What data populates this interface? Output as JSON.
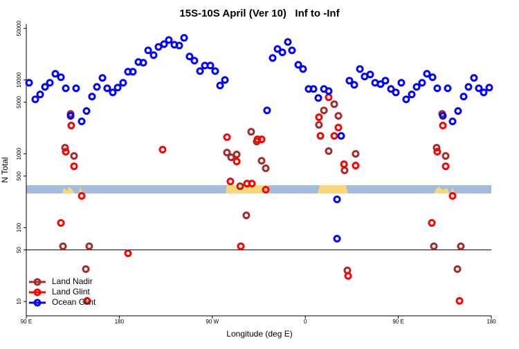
{
  "chart_data": {
    "type": "scatter",
    "title": "15S-10S April (Ver 10)   Inf to -Inf",
    "x_label": "Longitude (deg E)",
    "y_label": "N Total",
    "ylog": true,
    "legend": "bottom-left",
    "reference_line": 50,
    "xlim": [
      90,
      540
    ],
    "xticks": [
      {
        "value": 90,
        "label": "90 E"
      },
      180,
      {
        "value": 270,
        "label": "90 W"
      },
      {
        "value": 360,
        "label": "0"
      },
      {
        "value": 450,
        "label": "90 E"
      },
      {
        "value": 540,
        "label": "180"
      }
    ],
    "ylim": [
      6.4,
      57000
    ],
    "yticks": [
      10,
      50,
      100,
      500,
      1000,
      5000,
      10000,
      50000
    ],
    "series": [
      {
        "name": "Land Nadir",
        "color": "#a52a2a",
        "x": [
          127.5,
          136.2,
          132.9,
          125.5,
          150.9,
          147.6,
          284.2,
          288.2,
          293.6,
          296.9,
          302.9,
          307.6,
          313,
          317.7,
          321.7,
          373.2,
          378,
          382.6,
          388,
          392,
          398,
          400.7,
          408.7,
          487.1,
          495.8,
          492.4,
          484.4,
          510.5,
          507.2
        ],
        "values": [
          1210,
          937,
          3480,
          56,
          56,
          27.5,
          1040,
          898,
          980,
          364,
          147,
          1990,
          1470,
          806,
          637,
          2470,
          3880,
          1090,
          4710,
          3270,
          597,
          26.4,
          1000,
          1210,
          937,
          3480,
          56,
          56,
          27.5
        ]
      },
      {
        "name": "Land Glint",
        "color": "#ff0000",
        "x": [
          128.2,
          136.2,
          133.5,
          143.6,
          123.5,
          148.9,
          188.4,
          221.9,
          284.2,
          287.5,
          293.6,
          297.6,
          303.6,
          308.3,
          313.7,
          317.7,
          321.7,
          373.2,
          374.6,
          382.6,
          388,
          392,
          397.4,
          401.4,
          408.7,
          482.4,
          487.7,
          495.8,
          493.1,
          502.5,
          509.2
        ],
        "values": [
          1070,
          679,
          2420,
          269,
          116,
          10.2,
          45,
          1140,
          1680,
          423,
          789,
          56,
          396,
          396,
          1570,
          1570,
          327,
          3130,
          1750,
          5840,
          1750,
          2270,
          724,
          22.2,
          694,
          116,
          1070,
          679,
          2420,
          269,
          10.2
        ]
      },
      {
        "name": "Ocean Glint",
        "color": "#0000ff",
        "x": [
          92.7,
          98.7,
          103.4,
          108.1,
          112.8,
          118.1,
          123.5,
          128.2,
          138.2,
          132.9,
          143.6,
          148.3,
          153.6,
          158.3,
          163.7,
          168.3,
          173.7,
          178.4,
          183.7,
          188.4,
          193.1,
          198.5,
          203.2,
          207.9,
          213.2,
          217.9,
          223.3,
          227.9,
          233.3,
          238,
          242.7,
          248,
          252.7,
          258.1,
          262.8,
          268.1,
          272.8,
          277.5,
          282.2,
          323,
          328.4,
          333.1,
          337.8,
          343.1,
          347.1,
          353.2,
          357.8,
          363.2,
          367.9,
          372.6,
          378,
          382.6,
          390.7,
          390.7,
          394.7,
          402.7,
          407.4,
          412.8,
          417.4,
          422.8,
          427.5,
          432.8,
          437.5,
          442.9,
          447.6,
          452.9,
          457.6,
          463,
          467.7,
          473,
          477.7,
          483.1,
          487.7,
          497.8,
          493.1,
          502.5,
          507.8,
          513.2,
          517.9,
          523.2,
          527.9,
          532.6,
          538
        ],
        "values": [
          9180,
          5470,
          6370,
          8070,
          9180,
          12140,
          10900,
          7720,
          7720,
          3270,
          2750,
          3800,
          5970,
          8070,
          10670,
          7720,
          6790,
          7890,
          9180,
          12940,
          12940,
          17500,
          17130,
          25200,
          21700,
          28100,
          30600,
          34800,
          30000,
          29300,
          37200,
          20800,
          18300,
          13200,
          15700,
          15700,
          13200,
          8420,
          10000,
          3880,
          19900,
          26300,
          23700,
          32700,
          25200,
          16070,
          14100,
          7560,
          7560,
          5710,
          7560,
          7080,
          242,
          70.9,
          1750,
          9800,
          8600,
          14100,
          11130,
          11880,
          9180,
          8790,
          9800,
          7560,
          6790,
          9180,
          5470,
          6370,
          8070,
          9180,
          12140,
          10900,
          7720,
          7720,
          3270,
          2750,
          3800,
          5970,
          8070,
          10670,
          7720,
          6790,
          7890
        ]
      }
    ]
  }
}
